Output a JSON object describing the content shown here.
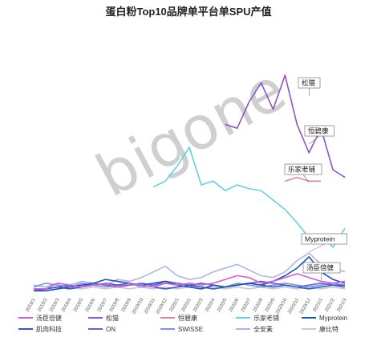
{
  "chart_data": {
    "type": "line",
    "title": "蛋白粉Top10品牌单平台单SPU产值",
    "xlabel": "",
    "ylabel": "",
    "grid": false,
    "legend_position": "bottom",
    "x": [
      "2019/1",
      "2019/2",
      "2019/3",
      "2019/4",
      "2019/5",
      "2019/6",
      "2019/7",
      "2019/8",
      "2019/9",
      "2019/10",
      "2019/11",
      "2019/12",
      "2020/1",
      "2020/2",
      "2020/3",
      "2020/4",
      "2020/5",
      "2020/6",
      "2020/7",
      "2020/8",
      "2020/9",
      "2020/10",
      "2020/11",
      "2020/12",
      "2021/1",
      "2021/2",
      "2021/3"
    ],
    "ylim": [
      0,
      100
    ],
    "series": [
      {
        "name": "汤臣倍健",
        "color": "#d85ad8",
        "values": [
          3,
          3,
          6,
          5,
          4,
          5,
          6,
          4,
          6,
          5,
          4,
          6,
          5,
          6,
          5,
          6,
          8,
          10,
          9,
          6,
          7,
          9,
          11,
          9,
          7,
          6,
          7
        ]
      },
      {
        "name": "松猫",
        "color": "#8b55c8",
        "values": [
          null,
          null,
          null,
          null,
          null,
          null,
          null,
          null,
          null,
          null,
          null,
          null,
          null,
          null,
          null,
          null,
          90,
          88,
          102,
          112,
          98,
          116,
          90,
          75,
          88,
          66,
          62
        ]
      },
      {
        "name": "恒碧康",
        "color": "#dc8a98",
        "values": [
          null,
          null,
          null,
          null,
          null,
          null,
          null,
          null,
          null,
          null,
          null,
          null,
          null,
          null,
          null,
          null,
          null,
          null,
          null,
          null,
          null,
          60,
          62,
          60,
          60,
          null,
          null
        ]
      },
      {
        "name": "乐家老铺",
        "color": "#5fd2e6",
        "values": [
          null,
          null,
          null,
          null,
          null,
          null,
          null,
          null,
          null,
          null,
          57,
          60,
          68,
          78,
          58,
          60,
          55,
          58,
          56,
          55,
          50,
          45,
          38,
          30,
          32,
          25,
          35
        ]
      },
      {
        "name": "Myprotein",
        "color": "#1e55b4",
        "values": [
          2,
          2,
          3,
          4,
          5,
          6,
          8,
          7,
          6,
          5,
          6,
          7,
          5,
          4,
          3,
          5,
          4,
          5,
          6,
          5,
          7,
          10,
          14,
          20,
          12,
          8,
          6
        ]
      },
      {
        "name": "肌肉科技",
        "color": "#3a56c6",
        "values": [
          2,
          3,
          4,
          3,
          4,
          5,
          6,
          5,
          6,
          5,
          4,
          3,
          4,
          5,
          4,
          3,
          4,
          5,
          6,
          5,
          4,
          5,
          4,
          3,
          4,
          5,
          4
        ]
      },
      {
        "name": "ON",
        "color": "#5c64d8",
        "values": [
          3,
          3,
          4,
          5,
          4,
          6,
          5,
          4,
          5,
          6,
          5,
          7,
          6,
          5,
          6,
          5,
          4,
          5,
          6,
          7,
          6,
          5,
          4,
          5,
          6,
          5,
          5
        ]
      },
      {
        "name": "SWISSE",
        "color": "#7d92e6",
        "values": [
          4,
          6,
          5,
          4,
          6,
          5,
          4,
          5,
          6,
          4,
          5,
          6,
          5,
          4,
          6,
          5,
          4,
          6,
          5,
          4,
          5,
          6,
          5,
          4,
          5,
          6,
          5
        ]
      },
      {
        "name": "全安素",
        "color": "#a8b6ec",
        "values": [
          5,
          4,
          6,
          5,
          7,
          6,
          5,
          8,
          7,
          9,
          12,
          15,
          10,
          8,
          9,
          12,
          14,
          16,
          13,
          10,
          9,
          12,
          18,
          22,
          16,
          14,
          12
        ]
      },
      {
        "name": "康比特",
        "color": "#c4cbd6",
        "values": [
          3,
          2,
          3,
          4,
          3,
          4,
          3,
          4,
          3,
          4,
          3,
          4,
          3,
          4,
          3,
          4,
          3,
          4,
          3,
          4,
          3,
          4,
          3,
          4,
          3,
          4,
          3
        ]
      }
    ],
    "annotations": [
      "松猫",
      "恒碧康",
      "乐家老铺",
      "Myprotein",
      "汤臣倍健"
    ],
    "legend": [
      "汤臣倍健",
      "松猫",
      "恒碧康",
      "乐家老铺",
      "Myprotein",
      "肌肉科技",
      "ON",
      "SWISSE",
      "全安素",
      "康比特"
    ],
    "watermark": "bigone"
  }
}
